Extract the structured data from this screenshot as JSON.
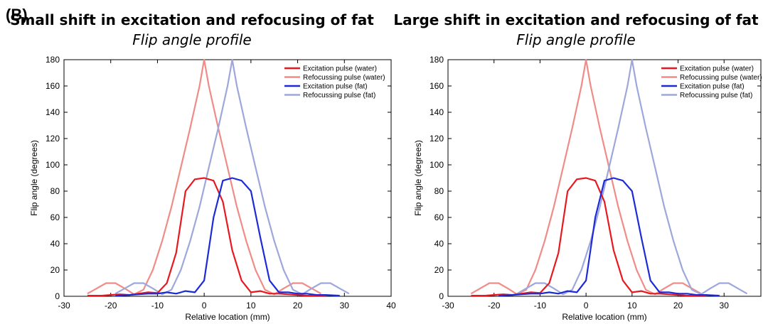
{
  "panel_label": "(B)",
  "chart_data": [
    {
      "type": "line",
      "title": "Small shift in excitation and refocusing of fat",
      "subtitle": "Flip angle profile",
      "xlabel": "Relative location (mm)",
      "ylabel": "Flip angle (degrees)",
      "xlim": [
        -30,
        40
      ],
      "ylim": [
        0,
        180
      ],
      "xticks": [
        -30,
        -20,
        -10,
        0,
        10,
        20,
        30,
        40
      ],
      "yticks": [
        0,
        20,
        40,
        60,
        80,
        100,
        120,
        140,
        160,
        180
      ],
      "grid": false,
      "legend_position": "top-right",
      "series": [
        {
          "name": "Excitation pulse (water)",
          "color": "#e8191e",
          "x": [
            -25,
            -22,
            -20,
            -18,
            -16,
            -14,
            -12,
            -10,
            -8,
            -6,
            -4,
            -2,
            0,
            2,
            4,
            6,
            8,
            10,
            12,
            14,
            16,
            18,
            20,
            22,
            24,
            26
          ],
          "y": [
            0.5,
            0.5,
            1,
            1.5,
            1,
            2,
            3,
            2.5,
            10,
            33,
            80,
            89,
            90,
            88,
            72,
            35,
            12,
            3,
            4,
            2,
            2,
            1.5,
            1,
            0.5,
            0.5,
            0.5
          ]
        },
        {
          "name": "Refocussing pulse (water)",
          "color": "#f08c88",
          "x": [
            -25,
            -23,
            -21,
            -19,
            -17,
            -15,
            -13,
            -11,
            -9,
            -7,
            -5,
            -3,
            -1,
            0,
            1,
            3,
            5,
            7,
            9,
            11,
            13,
            15,
            17,
            19,
            21,
            23,
            25
          ],
          "y": [
            2,
            6,
            10,
            10,
            6,
            1.5,
            5,
            20,
            42,
            68,
            98,
            128,
            160,
            180,
            160,
            128,
            98,
            68,
            42,
            20,
            5,
            1.5,
            6,
            10,
            10,
            6,
            2
          ]
        },
        {
          "name": "Excitation pulse (fat)",
          "color": "#1c2bd6",
          "x": [
            -19,
            -16,
            -14,
            -12,
            -10,
            -8,
            -6,
            -4,
            -2,
            0,
            2,
            4,
            6,
            8,
            10,
            12,
            14,
            16,
            18,
            20,
            22,
            24,
            26,
            29
          ],
          "y": [
            0.5,
            1,
            1.5,
            2,
            2,
            3,
            2,
            4,
            3,
            12,
            60,
            88,
            90,
            88,
            80,
            45,
            12,
            3,
            3,
            2,
            2,
            1,
            1,
            0.5
          ]
        },
        {
          "name": "Refocussing pulse (fat)",
          "color": "#9ea7dc",
          "x": [
            -19,
            -17,
            -15,
            -13,
            -11,
            -9,
            -7,
            -5,
            -3,
            -1,
            1,
            3,
            5,
            6,
            7,
            9,
            11,
            13,
            15,
            17,
            19,
            21,
            23,
            25,
            27,
            29,
            31
          ],
          "y": [
            2,
            6,
            10,
            10,
            6,
            1.5,
            5,
            20,
            42,
            68,
            98,
            128,
            160,
            180,
            160,
            128,
            98,
            68,
            42,
            20,
            5,
            1.5,
            6,
            10,
            10,
            6,
            2
          ]
        }
      ]
    },
    {
      "type": "line",
      "title": "Large shift in excitation and refocusing of fat",
      "subtitle": "Flip angle profile",
      "xlabel": "Relative location (mm)",
      "ylabel": "Flip angle (degrees)",
      "xlim": [
        -30,
        38
      ],
      "ylim": [
        0,
        180
      ],
      "xticks": [
        -30,
        -20,
        -10,
        0,
        10,
        20,
        30
      ],
      "yticks": [
        0,
        20,
        40,
        60,
        80,
        100,
        120,
        140,
        160,
        180
      ],
      "grid": false,
      "legend_position": "top-right",
      "series": [
        {
          "name": "Excitation pulse (water)",
          "color": "#e8191e",
          "x": [
            -25,
            -22,
            -20,
            -18,
            -16,
            -14,
            -12,
            -10,
            -8,
            -6,
            -4,
            -2,
            0,
            2,
            4,
            6,
            8,
            10,
            12,
            14,
            16,
            18,
            20,
            22,
            24,
            26
          ],
          "y": [
            0.5,
            0.5,
            1,
            1.5,
            1,
            2,
            3,
            2.5,
            10,
            33,
            80,
            89,
            90,
            88,
            72,
            35,
            12,
            3,
            4,
            2,
            2,
            1.5,
            1,
            0.5,
            0.5,
            0.5
          ]
        },
        {
          "name": "Refocussing pulse (water)",
          "color": "#f08c88",
          "x": [
            -25,
            -23,
            -21,
            -19,
            -17,
            -15,
            -13,
            -11,
            -9,
            -7,
            -5,
            -3,
            -1,
            0,
            1,
            3,
            5,
            7,
            9,
            11,
            13,
            15,
            17,
            19,
            21,
            23,
            25
          ],
          "y": [
            2,
            6,
            10,
            10,
            6,
            1.5,
            5,
            20,
            42,
            68,
            98,
            128,
            160,
            180,
            160,
            128,
            98,
            68,
            42,
            20,
            5,
            1.5,
            6,
            10,
            10,
            6,
            2
          ]
        },
        {
          "name": "Excitation pulse (fat)",
          "color": "#1c2bd6",
          "x": [
            -19,
            -16,
            -14,
            -12,
            -10,
            -8,
            -6,
            -4,
            -2,
            0,
            2,
            4,
            6,
            8,
            10,
            12,
            14,
            16,
            18,
            20,
            22,
            24,
            26,
            29
          ],
          "y": [
            0.5,
            1,
            1.5,
            2,
            2,
            3,
            2,
            4,
            3,
            12,
            60,
            88,
            90,
            88,
            80,
            45,
            12,
            3,
            3,
            2,
            2,
            1,
            1,
            0.5
          ]
        },
        {
          "name": "Refocussing pulse (fat)",
          "color": "#9ea7dc",
          "x": [
            -15,
            -13,
            -11,
            -9,
            -7,
            -5,
            -3,
            -1,
            1,
            3,
            5,
            7,
            9,
            10,
            11,
            13,
            15,
            17,
            19,
            21,
            23,
            25,
            27,
            29,
            31,
            33,
            35
          ],
          "y": [
            2,
            6,
            10,
            10,
            6,
            1.5,
            5,
            20,
            42,
            68,
            98,
            128,
            160,
            180,
            160,
            128,
            98,
            68,
            42,
            20,
            5,
            1.5,
            6,
            10,
            10,
            6,
            2
          ]
        }
      ]
    }
  ]
}
